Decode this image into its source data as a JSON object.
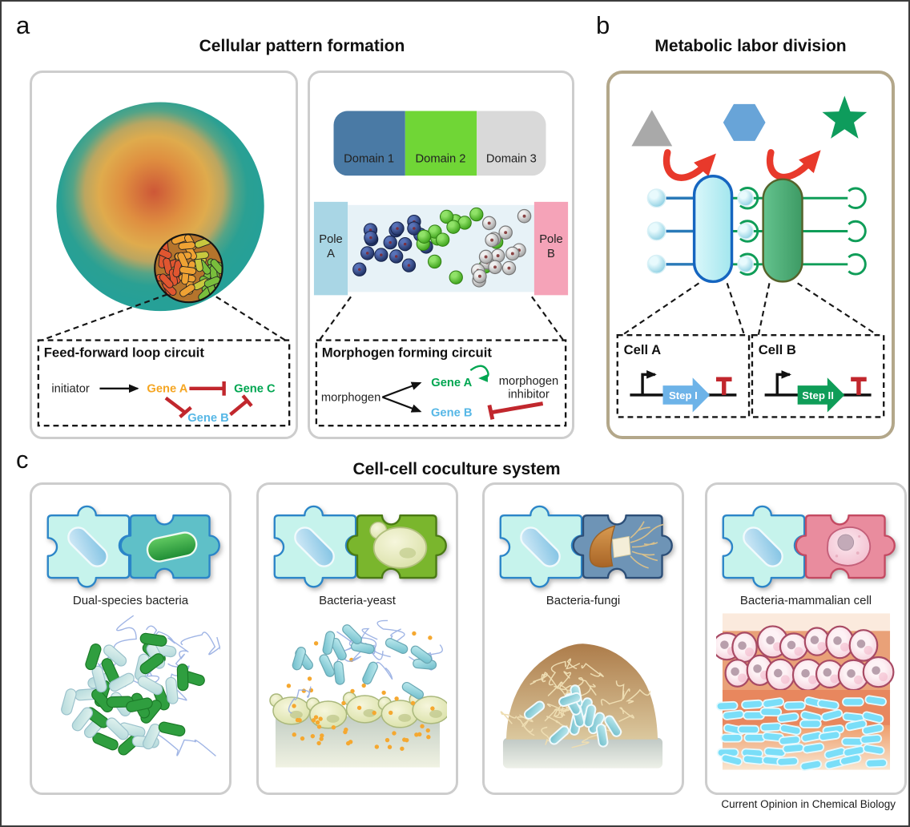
{
  "panel_a": {
    "label": "a",
    "title": "Cellular pattern formation",
    "ffl": {
      "title": "Feed-forward loop circuit",
      "initiator": "initiator",
      "gene_a": "Gene A",
      "gene_b": "Gene B",
      "gene_c": "Gene C"
    },
    "domains": [
      "Domain 1",
      "Domain 2",
      "Domain 3"
    ],
    "pole_left": [
      "Pole",
      "A"
    ],
    "pole_right": [
      "Pole",
      "B"
    ],
    "morphogen": {
      "title": "Morphogen forming circuit",
      "source": "morphogen",
      "gene_a": "Gene A",
      "gene_b": "Gene B",
      "inhibitor": [
        "morphogen",
        "inhibitor"
      ]
    }
  },
  "panel_b": {
    "label": "b",
    "title": "Metabolic labor division",
    "cells": [
      {
        "name": "Cell A",
        "step": "Step I"
      },
      {
        "name": "Cell B",
        "step": "Step II"
      }
    ]
  },
  "panel_c": {
    "label": "c",
    "title": "Cell-cell coculture system",
    "cards": [
      {
        "label": "Dual-species bacteria"
      },
      {
        "label": "Bacteria-yeast"
      },
      {
        "label": "Bacteria-fungi"
      },
      {
        "label": "Bacteria-mammalian cell"
      }
    ]
  },
  "journal": "Current Opinion in Chemical Biology",
  "colors": {
    "inhibit_red": "#c1272d",
    "gene_a_orange": "#f5a623",
    "gene_b_blue": "#56b7e6",
    "gene_c_green": "#00a651",
    "domain1_blue": "#4a7aa5",
    "domain2_green": "#70d636",
    "domain3_gray": "#d9d9d9",
    "pole_a_blue": "#a9d6e5",
    "pole_b_pink": "#f5a3b8",
    "panel_b_border_tan": "#b3a78a",
    "arrow_red": "#e8392b",
    "step1_blue": "#6db3e8",
    "step2_green": "#0f9d58"
  }
}
